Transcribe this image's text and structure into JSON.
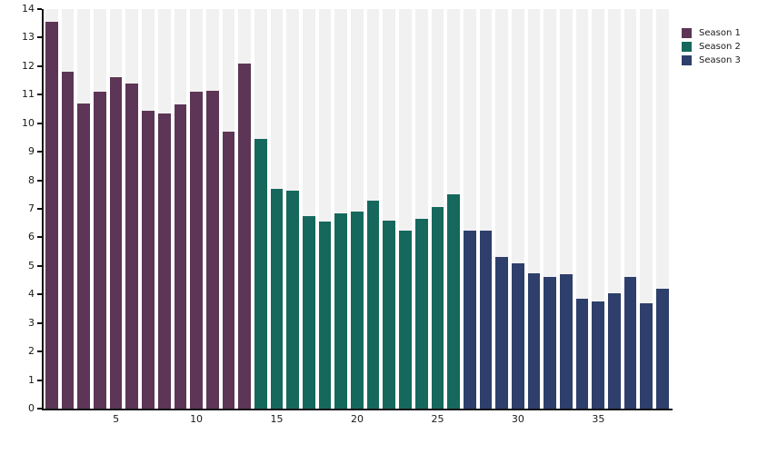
{
  "chart_data": {
    "type": "bar",
    "title": "",
    "xlabel": "",
    "ylabel": "",
    "ylim": [
      0,
      14
    ],
    "y_ticks": [
      0,
      1,
      2,
      3,
      4,
      5,
      6,
      7,
      8,
      9,
      10,
      11,
      12,
      13,
      14
    ],
    "x_ticks": [
      5,
      10,
      15,
      20,
      25,
      30,
      35
    ],
    "x_range": [
      1,
      39
    ],
    "grid": "gray panel columns separated by white vertical stripes, no horizontal gridlines",
    "legend_position": "top-right",
    "series": [
      {
        "name": "Season 1",
        "color": "#5d3556",
        "episode_start": 1,
        "values": [
          13.55,
          11.8,
          10.7,
          11.1,
          11.6,
          11.4,
          10.45,
          10.35,
          10.65,
          11.1,
          11.15,
          9.7,
          12.1
        ]
      },
      {
        "name": "Season 2",
        "color": "#16685d",
        "episode_start": 14,
        "values": [
          9.45,
          7.7,
          7.65,
          6.75,
          6.55,
          6.85,
          6.9,
          7.3,
          6.6,
          6.25,
          6.65,
          7.05,
          7.5
        ]
      },
      {
        "name": "Season 3",
        "color": "#2e3f6b",
        "episode_start": 27,
        "values": [
          6.25,
          6.25,
          5.3,
          5.1,
          4.75,
          4.6,
          4.7,
          3.85,
          3.75,
          4.05,
          4.6,
          3.7,
          4.2
        ]
      }
    ]
  },
  "colors": {
    "panel_background": "#f1f1f1",
    "stripe": "#ffffff",
    "axis": "#111111",
    "text": "#1a1a1a",
    "figure_background": "#ffffff"
  }
}
